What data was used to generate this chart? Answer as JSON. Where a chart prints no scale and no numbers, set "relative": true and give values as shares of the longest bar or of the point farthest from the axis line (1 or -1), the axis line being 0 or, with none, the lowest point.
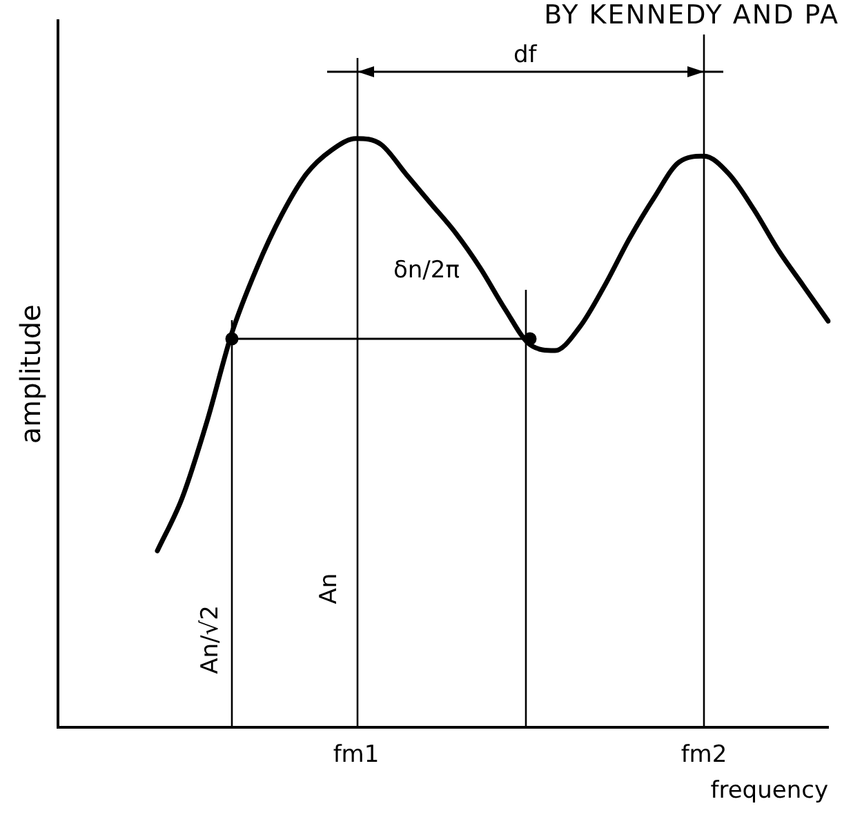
{
  "chart_data": {
    "type": "line",
    "title": "BY KENNEDY AND PA",
    "xlabel": "frequency",
    "ylabel": "amplitude",
    "relative": true,
    "legend": false,
    "tick_labels": "x",
    "categories": [
      null,
      null,
      null,
      null,
      null,
      null,
      null,
      null,
      null,
      null,
      null,
      null,
      "fm1",
      null,
      null,
      null,
      null,
      null,
      null,
      null,
      null,
      null,
      null,
      null,
      null,
      null,
      "fm2",
      null,
      null,
      null,
      null,
      null
    ],
    "series": [
      {
        "color": "#000000",
        "values": [
          null,
          null,
          null,
          null,
          0.3,
          0.39,
          0.52,
          0.67,
          0.78,
          0.87,
          0.94,
          0.98,
          1.0,
          0.99,
          0.94,
          0.89,
          0.84,
          0.78,
          0.71,
          0.65,
          0.64,
          0.68,
          0.75,
          0.83,
          0.9,
          0.96,
          0.97,
          0.94,
          0.88,
          0.81,
          0.75,
          0.69
        ]
      },
      {
        "color": "#000000",
        "marker": "circle",
        "values": [
          null,
          null,
          null,
          null,
          null,
          null,
          null,
          0.66,
          null,
          null,
          null,
          null,
          null,
          null,
          null,
          null,
          null,
          null,
          null,
          0.66,
          null,
          null,
          null,
          null,
          null,
          null,
          null,
          null,
          null,
          null,
          null,
          null
        ]
      }
    ],
    "annotations": [
      "df",
      "δn/2π",
      "An/√2",
      "An"
    ]
  }
}
